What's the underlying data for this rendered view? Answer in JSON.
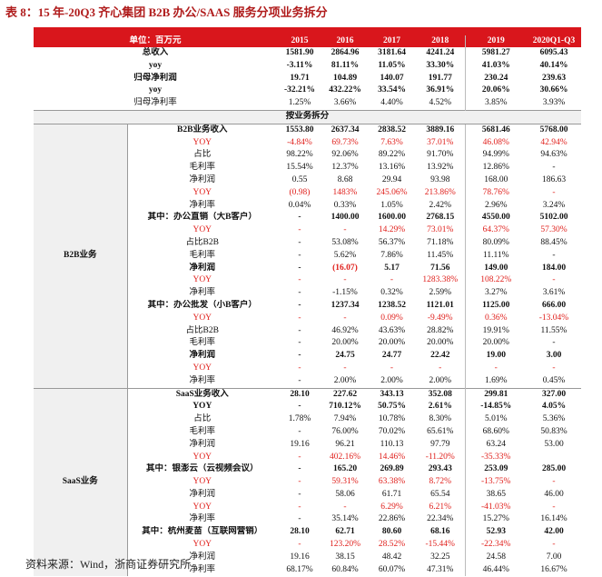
{
  "title": "表 8：15 年-20Q3 齐心集团 B2B 办公/SAAS 服务分项业务拆分",
  "source": "资料来源：Wind，浙商证券研究所",
  "table": {
    "header": [
      "单位：百万元",
      "2015",
      "2016",
      "2017",
      "2018",
      "2019",
      "2020Q1-Q3"
    ],
    "top_rows": [
      {
        "label": "总收入",
        "bold": true,
        "values": [
          "1581.90",
          "2864.96",
          "3181.64",
          "4241.24",
          "5981.27",
          "6095.43"
        ]
      },
      {
        "label": "yoy",
        "bold": true,
        "values": [
          "-3.11%",
          "81.11%",
          "11.05%",
          "33.30%",
          "41.03%",
          "40.14%"
        ]
      },
      {
        "label": "归母净利润",
        "bold": true,
        "values": [
          "19.71",
          "104.89",
          "140.07",
          "191.77",
          "230.24",
          "239.63"
        ]
      },
      {
        "label": "yoy",
        "bold": true,
        "values": [
          "-32.21%",
          "432.22%",
          "33.54%",
          "36.91%",
          "20.06%",
          "30.66%"
        ]
      },
      {
        "label": "归母净利率",
        "bold": false,
        "values": [
          "1.25%",
          "3.66%",
          "4.40%",
          "4.52%",
          "3.85%",
          "3.93%"
        ]
      }
    ],
    "section_title": "按业务拆分",
    "groups": [
      {
        "name": "B2B业务",
        "rows": [
          {
            "label": "B2B业务收入",
            "bold": true,
            "values": [
              "1553.80",
              "2637.34",
              "2838.52",
              "3889.16",
              "5681.46",
              "5768.00"
            ]
          },
          {
            "label": "YOY",
            "color": "#e0201c",
            "values": [
              "-4.84%",
              "69.73%",
              "7.63%",
              "37.01%",
              "46.08%",
              "42.94%"
            ]
          },
          {
            "label": "占比",
            "values": [
              "98.22%",
              "92.06%",
              "89.22%",
              "91.70%",
              "94.99%",
              "94.63%"
            ]
          },
          {
            "label": "毛利率",
            "values": [
              "15.54%",
              "12.37%",
              "13.16%",
              "13.92%",
              "12.86%",
              "-"
            ]
          },
          {
            "label": "净利润",
            "values": [
              "0.55",
              "8.68",
              "29.94",
              "93.98",
              "168.00",
              "186.63"
            ]
          },
          {
            "label": "YOY",
            "color": "#e0201c",
            "values": [
              "(0.98)",
              "1483%",
              "245.06%",
              "213.86%",
              "78.76%",
              "-"
            ]
          },
          {
            "label": "净利率",
            "values": [
              "0.04%",
              "0.33%",
              "1.05%",
              "2.42%",
              "2.96%",
              "3.24%"
            ]
          },
          {
            "label": "其中：办公直销（大B客户）",
            "bold": true,
            "values": [
              "-",
              "1400.00",
              "1600.00",
              "2768.15",
              "4550.00",
              "5102.00"
            ]
          },
          {
            "label": "YOY",
            "color": "#e0201c",
            "values": [
              "-",
              "-",
              "14.29%",
              "73.01%",
              "64.37%",
              "57.30%"
            ]
          },
          {
            "label": "占比B2B",
            "values": [
              "-",
              "53.08%",
              "56.37%",
              "71.18%",
              "80.09%",
              "88.45%"
            ]
          },
          {
            "label": "毛利率",
            "values": [
              "-",
              "5.62%",
              "7.86%",
              "11.45%",
              "11.11%",
              "-"
            ]
          },
          {
            "label": "净利润",
            "bold": true,
            "cell_colors": [
              null,
              "#e0201c",
              null,
              null,
              null,
              null
            ],
            "values": [
              "-",
              "(16.07)",
              "5.17",
              "71.56",
              "149.00",
              "184.00"
            ]
          },
          {
            "label": "YOY",
            "color": "#e0201c",
            "values": [
              "-",
              "-",
              "-",
              "1283.38%",
              "108.22%",
              "-"
            ]
          },
          {
            "label": "净利率",
            "values": [
              "-",
              "-1.15%",
              "0.32%",
              "2.59%",
              "3.27%",
              "3.61%"
            ]
          },
          {
            "label": "其中：办公批发（小B客户）",
            "bold": true,
            "values": [
              "-",
              "1237.34",
              "1238.52",
              "1121.01",
              "1125.00",
              "666.00"
            ]
          },
          {
            "label": "YOY",
            "color": "#e0201c",
            "values": [
              "-",
              "-",
              "0.09%",
              "-9.49%",
              "0.36%",
              "-13.04%"
            ]
          },
          {
            "label": "占比B2B",
            "values": [
              "-",
              "46.92%",
              "43.63%",
              "28.82%",
              "19.91%",
              "11.55%"
            ]
          },
          {
            "label": "毛利率",
            "values": [
              "-",
              "20.00%",
              "20.00%",
              "20.00%",
              "20.00%",
              "-"
            ]
          },
          {
            "label": "净利润",
            "bold": true,
            "values": [
              "-",
              "24.75",
              "24.77",
              "22.42",
              "19.00",
              "3.00"
            ]
          },
          {
            "label": "YOY",
            "color": "#e0201c",
            "values": [
              "-",
              "-",
              "-",
              "-",
              "-",
              "-"
            ]
          },
          {
            "label": "净利率",
            "values": [
              "-",
              "2.00%",
              "2.00%",
              "2.00%",
              "1.69%",
              "0.45%"
            ]
          }
        ]
      },
      {
        "name": "SaaS业务",
        "rows": [
          {
            "label": "SaaS业务收入",
            "bold": true,
            "values": [
              "28.10",
              "227.62",
              "343.13",
              "352.08",
              "299.81",
              "327.00"
            ]
          },
          {
            "label": "YOY",
            "bold": true,
            "values": [
              "-",
              "710.12%",
              "50.75%",
              "2.61%",
              "-14.85%",
              "4.05%"
            ]
          },
          {
            "label": "占比",
            "values": [
              "1.78%",
              "7.94%",
              "10.78%",
              "8.30%",
              "5.01%",
              "5.36%"
            ]
          },
          {
            "label": "毛利率",
            "values": [
              "-",
              "76.00%",
              "70.02%",
              "65.61%",
              "68.60%",
              "50.83%"
            ]
          },
          {
            "label": "净利润",
            "values": [
              "19.16",
              "96.21",
              "110.13",
              "97.79",
              "63.24",
              "53.00"
            ]
          },
          {
            "label": "YOY",
            "color": "#e0201c",
            "values": [
              "-",
              "402.16%",
              "14.46%",
              "-11.20%",
              "-35.33%",
              null
            ]
          },
          {
            "label": "其中：银澎云（云视频会议）",
            "bold": true,
            "values": [
              "-",
              "165.20",
              "269.89",
              "293.43",
              "253.09",
              "285.00"
            ]
          },
          {
            "label": "YOY",
            "color": "#e0201c",
            "values": [
              "-",
              "59.31%",
              "63.38%",
              "8.72%",
              "-13.75%",
              "-"
            ]
          },
          {
            "label": "净利润",
            "values": [
              "-",
              "58.06",
              "61.71",
              "65.54",
              "38.65",
              "46.00"
            ]
          },
          {
            "label": "YOY",
            "color": "#e0201c",
            "values": [
              "-",
              "-",
              "6.29%",
              "6.21%",
              "-41.03%",
              "-"
            ]
          },
          {
            "label": "净利率",
            "values": [
              "-",
              "35.14%",
              "22.86%",
              "22.34%",
              "15.27%",
              "16.14%"
            ]
          },
          {
            "label": "其中：杭州麦苗（互联网营销）",
            "bold": true,
            "values": [
              "28.10",
              "62.71",
              "80.60",
              "68.16",
              "52.93",
              "42.00"
            ]
          },
          {
            "label": "YOY",
            "color": "#e0201c",
            "values": [
              "-",
              "123.20%",
              "28.52%",
              "-15.44%",
              "-22.34%",
              "-"
            ]
          },
          {
            "label": "净利润",
            "values": [
              "19.16",
              "38.15",
              "48.42",
              "32.25",
              "24.58",
              "7.00"
            ]
          },
          {
            "label": "净利率",
            "values": [
              "68.17%",
              "60.84%",
              "60.07%",
              "47.31%",
              "46.44%",
              "16.67%"
            ]
          }
        ]
      }
    ]
  }
}
